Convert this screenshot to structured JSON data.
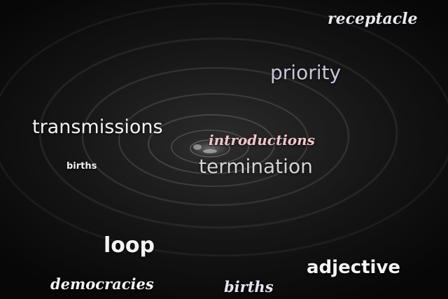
{
  "words": {
    "receptacle": "receptacle",
    "priority": "priority",
    "transmissions": "transmissions",
    "introductions": "introductions",
    "births_small": "births",
    "termination": "termination",
    "loop": "loop",
    "adjective": "adjective",
    "democracies": "democracies",
    "births_bottom": "births"
  },
  "colors": {
    "white": "#f4f4f4",
    "lavender": "#c8c4d8",
    "pink": "#f2c6cc",
    "water_dark": "#0b0b0b"
  }
}
